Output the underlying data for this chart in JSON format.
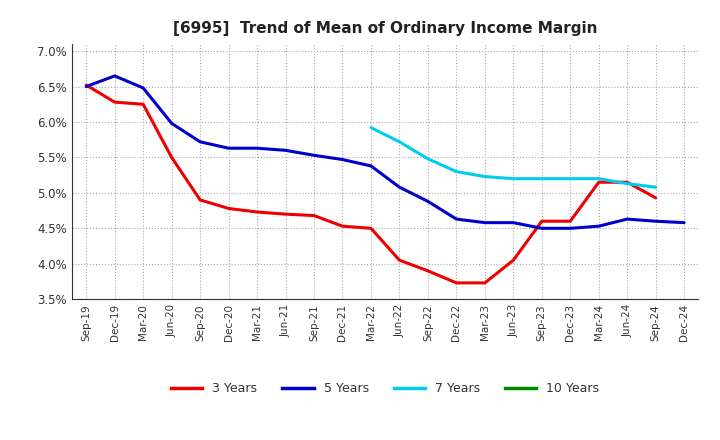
{
  "title": "[6995]  Trend of Mean of Ordinary Income Margin",
  "ylim": [
    0.035,
    0.071
  ],
  "yticks": [
    0.035,
    0.04,
    0.045,
    0.05,
    0.055,
    0.06,
    0.065,
    0.07
  ],
  "background_color": "#ffffff",
  "plot_bg_color": "#ffffff",
  "grid_color": "#aaaaaa",
  "series": {
    "3 Years": {
      "color": "#ee0000",
      "x": [
        "Sep-19",
        "Dec-19",
        "Mar-20",
        "Jun-20",
        "Sep-20",
        "Dec-20",
        "Mar-21",
        "Jun-21",
        "Sep-21",
        "Dec-21",
        "Mar-22",
        "Jun-22",
        "Sep-22",
        "Dec-22",
        "Mar-23",
        "Jun-23",
        "Sep-23",
        "Dec-23",
        "Mar-24",
        "Jun-24",
        "Sep-24"
      ],
      "y": [
        0.0652,
        0.0628,
        0.0625,
        0.055,
        0.049,
        0.0478,
        0.0473,
        0.047,
        0.0468,
        0.0453,
        0.045,
        0.0405,
        0.039,
        0.0373,
        0.0373,
        0.0405,
        0.046,
        0.046,
        0.0515,
        0.0515,
        0.0493
      ]
    },
    "5 Years": {
      "color": "#0000cc",
      "x": [
        "Sep-19",
        "Dec-19",
        "Mar-20",
        "Jun-20",
        "Sep-20",
        "Dec-20",
        "Mar-21",
        "Jun-21",
        "Sep-21",
        "Dec-21",
        "Mar-22",
        "Jun-22",
        "Sep-22",
        "Dec-22",
        "Mar-23",
        "Jun-23",
        "Sep-23",
        "Dec-23",
        "Mar-24",
        "Jun-24",
        "Sep-24",
        "Dec-24"
      ],
      "y": [
        0.065,
        0.0665,
        0.0648,
        0.0598,
        0.0572,
        0.0563,
        0.0563,
        0.056,
        0.0553,
        0.0547,
        0.0538,
        0.0508,
        0.0488,
        0.0463,
        0.0458,
        0.0458,
        0.045,
        0.045,
        0.0453,
        0.0463,
        0.046,
        0.0458
      ]
    },
    "7 Years": {
      "color": "#00ccee",
      "x": [
        "Mar-22",
        "Jun-22",
        "Sep-22",
        "Dec-22",
        "Mar-23",
        "Jun-23",
        "Sep-23",
        "Dec-23",
        "Mar-24",
        "Jun-24",
        "Sep-24"
      ],
      "y": [
        0.0592,
        0.0572,
        0.0548,
        0.053,
        0.0523,
        0.052,
        0.052,
        0.052,
        0.052,
        0.0513,
        0.0508
      ]
    },
    "10 Years": {
      "color": "#008800",
      "x": [],
      "y": []
    }
  },
  "legend_labels": [
    "3 Years",
    "5 Years",
    "7 Years",
    "10 Years"
  ],
  "legend_colors": [
    "#ee0000",
    "#0000cc",
    "#00ccee",
    "#008800"
  ],
  "x_labels": [
    "Sep-19",
    "Dec-19",
    "Mar-20",
    "Jun-20",
    "Sep-20",
    "Dec-20",
    "Mar-21",
    "Jun-21",
    "Sep-21",
    "Dec-21",
    "Mar-22",
    "Jun-22",
    "Sep-22",
    "Dec-22",
    "Mar-23",
    "Jun-23",
    "Sep-23",
    "Dec-23",
    "Mar-24",
    "Jun-24",
    "Sep-24",
    "Dec-24"
  ]
}
